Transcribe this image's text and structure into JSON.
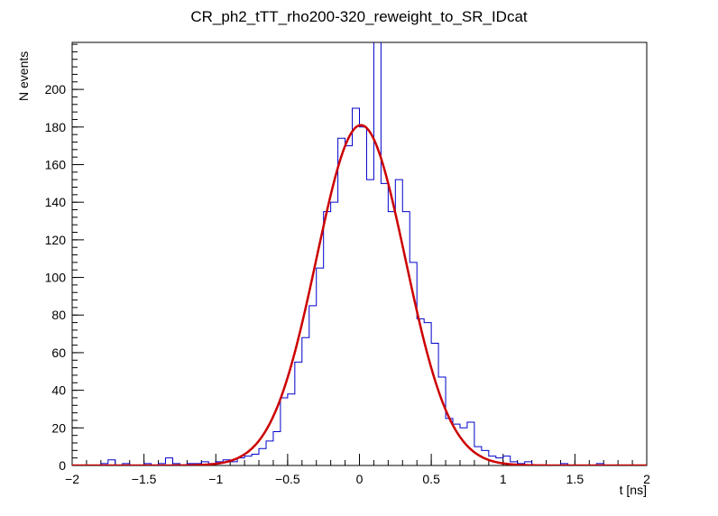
{
  "chart_data": {
    "type": "bar",
    "subtype": "histogram-with-gaussian-fit",
    "title": "CR_ph2_tTT_rho200-320_reweight_to_SR_IDcat",
    "xlabel": "t [ns]",
    "ylabel": "N events",
    "xlim": [
      -2,
      2
    ],
    "ylim": [
      0,
      225
    ],
    "grid": false,
    "legend": "none",
    "bin_start": -2,
    "bin_width": 0.05,
    "bin_counts": [
      0,
      0,
      0,
      0,
      1,
      3,
      0,
      1,
      0,
      0,
      1,
      0,
      1,
      4,
      1,
      0,
      1,
      1,
      2,
      1,
      2,
      3,
      2,
      4,
      5,
      6,
      9,
      13,
      18,
      36,
      38,
      55,
      68,
      85,
      105,
      135,
      140,
      174,
      170,
      190,
      180,
      152,
      240,
      150,
      135,
      152,
      135,
      108,
      78,
      76,
      65,
      47,
      25,
      22,
      20,
      23,
      10,
      8,
      5,
      4,
      5,
      2,
      1,
      2,
      0,
      0,
      0,
      0,
      1,
      0,
      0,
      0,
      0,
      1,
      0,
      0,
      0,
      0,
      0,
      0
    ],
    "x_ticks": [
      -2,
      -1.5,
      -1,
      -0.5,
      0,
      0.5,
      1,
      1.5,
      2
    ],
    "x_tick_labels": [
      "−2",
      "−1.5",
      "−1",
      "−0.5",
      "0",
      "0.5",
      "1",
      "1.5",
      "2"
    ],
    "y_ticks": [
      0,
      20,
      40,
      60,
      80,
      100,
      120,
      140,
      160,
      180,
      200
    ],
    "y_tick_labels": [
      "0",
      "20",
      "40",
      "60",
      "80",
      "100",
      "120",
      "140",
      "160",
      "180",
      "200"
    ],
    "x_minor_step": 0.1,
    "y_minor_step": 4,
    "hist_color": "#0000cc",
    "fit_color": "#cc0000",
    "fit": {
      "type": "gaussian",
      "amplitude": 181,
      "mean": 0.01,
      "sigma": 0.31
    }
  }
}
